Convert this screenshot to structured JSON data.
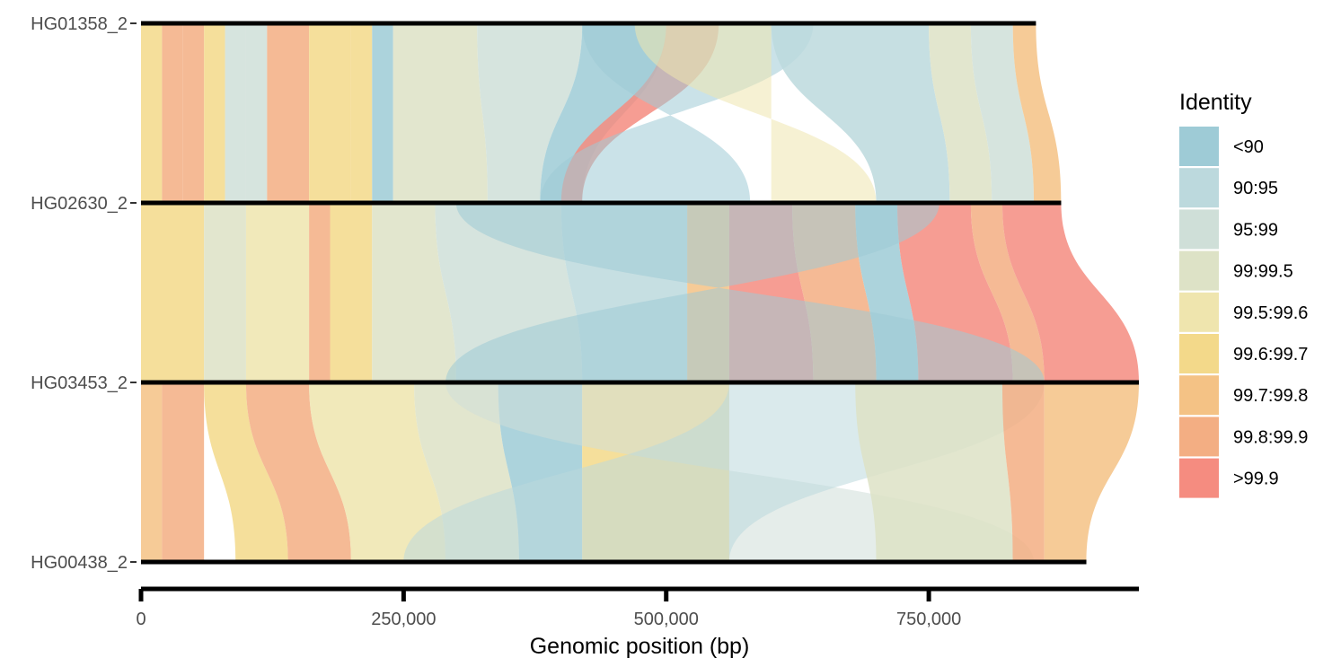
{
  "chart_data": {
    "type": "synteny-ribbon",
    "xlabel": "Genomic position (bp)",
    "x_ticks": [
      0,
      250000,
      500000,
      750000
    ],
    "x_tick_labels": [
      "0",
      "250,000",
      "500,000",
      "750,000"
    ],
    "xlim": [
      0,
      950000
    ],
    "haplotypes": [
      {
        "name": "HG01358_2",
        "length": 852000
      },
      {
        "name": "HG02630_2",
        "length": 876000
      },
      {
        "name": "HG03453_2",
        "length": 950000
      },
      {
        "name": "HG00438_2",
        "length": 900000
      }
    ],
    "legend": {
      "title": "Identity",
      "position": "right",
      "entries": [
        {
          "label": "<90",
          "color": "#9ecbd6"
        },
        {
          "label": "90:95",
          "color": "#bcd9dd"
        },
        {
          "label": "95:99",
          "color": "#cfdfd8"
        },
        {
          "label": "99:99.5",
          "color": "#dde2c6"
        },
        {
          "label": "99.5:99.6",
          "color": "#efe5ae"
        },
        {
          "label": "99.6:99.7",
          "color": "#f3d98a"
        },
        {
          "label": "99.7:99.8",
          "color": "#f4c285"
        },
        {
          "label": "99.8:99.9",
          "color": "#f3ae83"
        },
        {
          "label": ">99.9",
          "color": "#f58c80"
        }
      ]
    },
    "alignments": [
      {
        "pair": [
          0,
          1
        ],
        "segments": [
          {
            "top": [
              0,
              20000
            ],
            "bottom": [
              0,
              20000
            ],
            "identity": 5
          },
          {
            "top": [
              20000,
              40000
            ],
            "bottom": [
              20000,
              40000
            ],
            "identity": 7
          },
          {
            "top": [
              40000,
              60000
            ],
            "bottom": [
              40000,
              60000
            ],
            "identity": 7
          },
          {
            "top": [
              60000,
              80000
            ],
            "bottom": [
              60000,
              80000
            ],
            "identity": 5
          },
          {
            "top": [
              80000,
              100000
            ],
            "bottom": [
              80000,
              100000
            ],
            "identity": 2
          },
          {
            "top": [
              100000,
              120000
            ],
            "bottom": [
              100000,
              120000
            ],
            "identity": 2
          },
          {
            "top": [
              120000,
              160000
            ],
            "bottom": [
              120000,
              160000
            ],
            "identity": 7
          },
          {
            "top": [
              160000,
              200000
            ],
            "bottom": [
              160000,
              200000
            ],
            "identity": 5
          },
          {
            "top": [
              200000,
              220000
            ],
            "bottom": [
              200000,
              220000
            ],
            "identity": 5
          },
          {
            "top": [
              220000,
              240000
            ],
            "bottom": [
              220000,
              240000
            ],
            "identity": 0
          },
          {
            "top": [
              240000,
              320000
            ],
            "bottom": [
              240000,
              330000
            ],
            "identity": 3
          },
          {
            "top": [
              320000,
              420000
            ],
            "bottom": [
              330000,
              380000
            ],
            "identity": 2
          },
          {
            "top": [
              420000,
              500000
            ],
            "bottom": [
              380000,
              420000
            ],
            "identity": 0
          },
          {
            "top": [
              500000,
              550000
            ],
            "bottom": [
              400000,
              420000
            ],
            "identity": 8
          },
          {
            "top": [
              420000,
              640000
            ],
            "bottom": [
              580000,
              380000
            ],
            "identity": 0,
            "inverted": true
          },
          {
            "top": [
              470000,
              600000
            ],
            "bottom": [
              700000,
              600000
            ],
            "identity": 4,
            "inverted": true
          },
          {
            "top": [
              600000,
              750000
            ],
            "bottom": [
              700000,
              770000
            ],
            "identity": 1
          },
          {
            "top": [
              750000,
              790000
            ],
            "bottom": [
              770000,
              810000
            ],
            "identity": 3
          },
          {
            "top": [
              790000,
              830000
            ],
            "bottom": [
              810000,
              850000
            ],
            "identity": 2
          },
          {
            "top": [
              830000,
              852000
            ],
            "bottom": [
              850000,
              876000
            ],
            "identity": 6
          }
        ]
      },
      {
        "pair": [
          1,
          2
        ],
        "segments": [
          {
            "top": [
              0,
              60000
            ],
            "bottom": [
              0,
              60000
            ],
            "identity": 5
          },
          {
            "top": [
              60000,
              100000
            ],
            "bottom": [
              60000,
              100000
            ],
            "identity": 3
          },
          {
            "top": [
              100000,
              160000
            ],
            "bottom": [
              100000,
              160000
            ],
            "identity": 4
          },
          {
            "top": [
              160000,
              180000
            ],
            "bottom": [
              160000,
              180000
            ],
            "identity": 7
          },
          {
            "top": [
              180000,
              220000
            ],
            "bottom": [
              180000,
              220000
            ],
            "identity": 5
          },
          {
            "top": [
              220000,
              280000
            ],
            "bottom": [
              220000,
              300000
            ],
            "identity": 3
          },
          {
            "top": [
              280000,
              400000
            ],
            "bottom": [
              300000,
              420000
            ],
            "identity": 2
          },
          {
            "top": [
              400000,
              520000
            ],
            "bottom": [
              420000,
              520000
            ],
            "identity": 1
          },
          {
            "top": [
              520000,
              560000
            ],
            "bottom": [
              520000,
              560000
            ],
            "identity": 6
          },
          {
            "top": [
              560000,
              620000
            ],
            "bottom": [
              560000,
              640000
            ],
            "identity": 8
          },
          {
            "top": [
              620000,
              680000
            ],
            "bottom": [
              640000,
              700000
            ],
            "identity": 7
          },
          {
            "top": [
              680000,
              720000
            ],
            "bottom": [
              700000,
              740000
            ],
            "identity": 0
          },
          {
            "top": [
              720000,
              790000
            ],
            "bottom": [
              740000,
              830000
            ],
            "identity": 8
          },
          {
            "top": [
              790000,
              820000
            ],
            "bottom": [
              830000,
              860000
            ],
            "identity": 7
          },
          {
            "top": [
              820000,
              876000
            ],
            "bottom": [
              860000,
              950000
            ],
            "identity": 8
          },
          {
            "top": [
              300000,
              760000
            ],
            "bottom": [
              860000,
              290000
            ],
            "identity": 0,
            "inverted": true
          }
        ]
      },
      {
        "pair": [
          2,
          3
        ],
        "segments": [
          {
            "top": [
              0,
              20000
            ],
            "bottom": [
              0,
              20000
            ],
            "identity": 6
          },
          {
            "top": [
              20000,
              60000
            ],
            "bottom": [
              20000,
              60000
            ],
            "identity": 7
          },
          {
            "top": [
              60000,
              100000
            ],
            "bottom": [
              90000,
              140000
            ],
            "identity": 5
          },
          {
            "top": [
              100000,
              160000
            ],
            "bottom": [
              140000,
              200000
            ],
            "identity": 7
          },
          {
            "top": [
              160000,
              260000
            ],
            "bottom": [
              200000,
              290000
            ],
            "identity": 4
          },
          {
            "top": [
              260000,
              340000
            ],
            "bottom": [
              290000,
              360000
            ],
            "identity": 3
          },
          {
            "top": [
              340000,
              420000
            ],
            "bottom": [
              360000,
              420000
            ],
            "identity": 0
          },
          {
            "top": [
              420000,
              560000
            ],
            "bottom": [
              420000,
              560000
            ],
            "identity": 5
          },
          {
            "top": [
              290000,
              560000
            ],
            "bottom": [
              850000,
              560000
            ],
            "identity": 2,
            "inverted": true
          },
          {
            "top": [
              560000,
              860000
            ],
            "bottom": [
              250000,
              560000
            ],
            "identity": 1,
            "inverted": true
          },
          {
            "top": [
              680000,
              820000
            ],
            "bottom": [
              700000,
              830000
            ],
            "identity": 3
          },
          {
            "top": [
              820000,
              860000
            ],
            "bottom": [
              830000,
              860000
            ],
            "identity": 7
          },
          {
            "top": [
              860000,
              950000
            ],
            "bottom": [
              860000,
              900000
            ],
            "identity": 6
          }
        ]
      }
    ]
  }
}
